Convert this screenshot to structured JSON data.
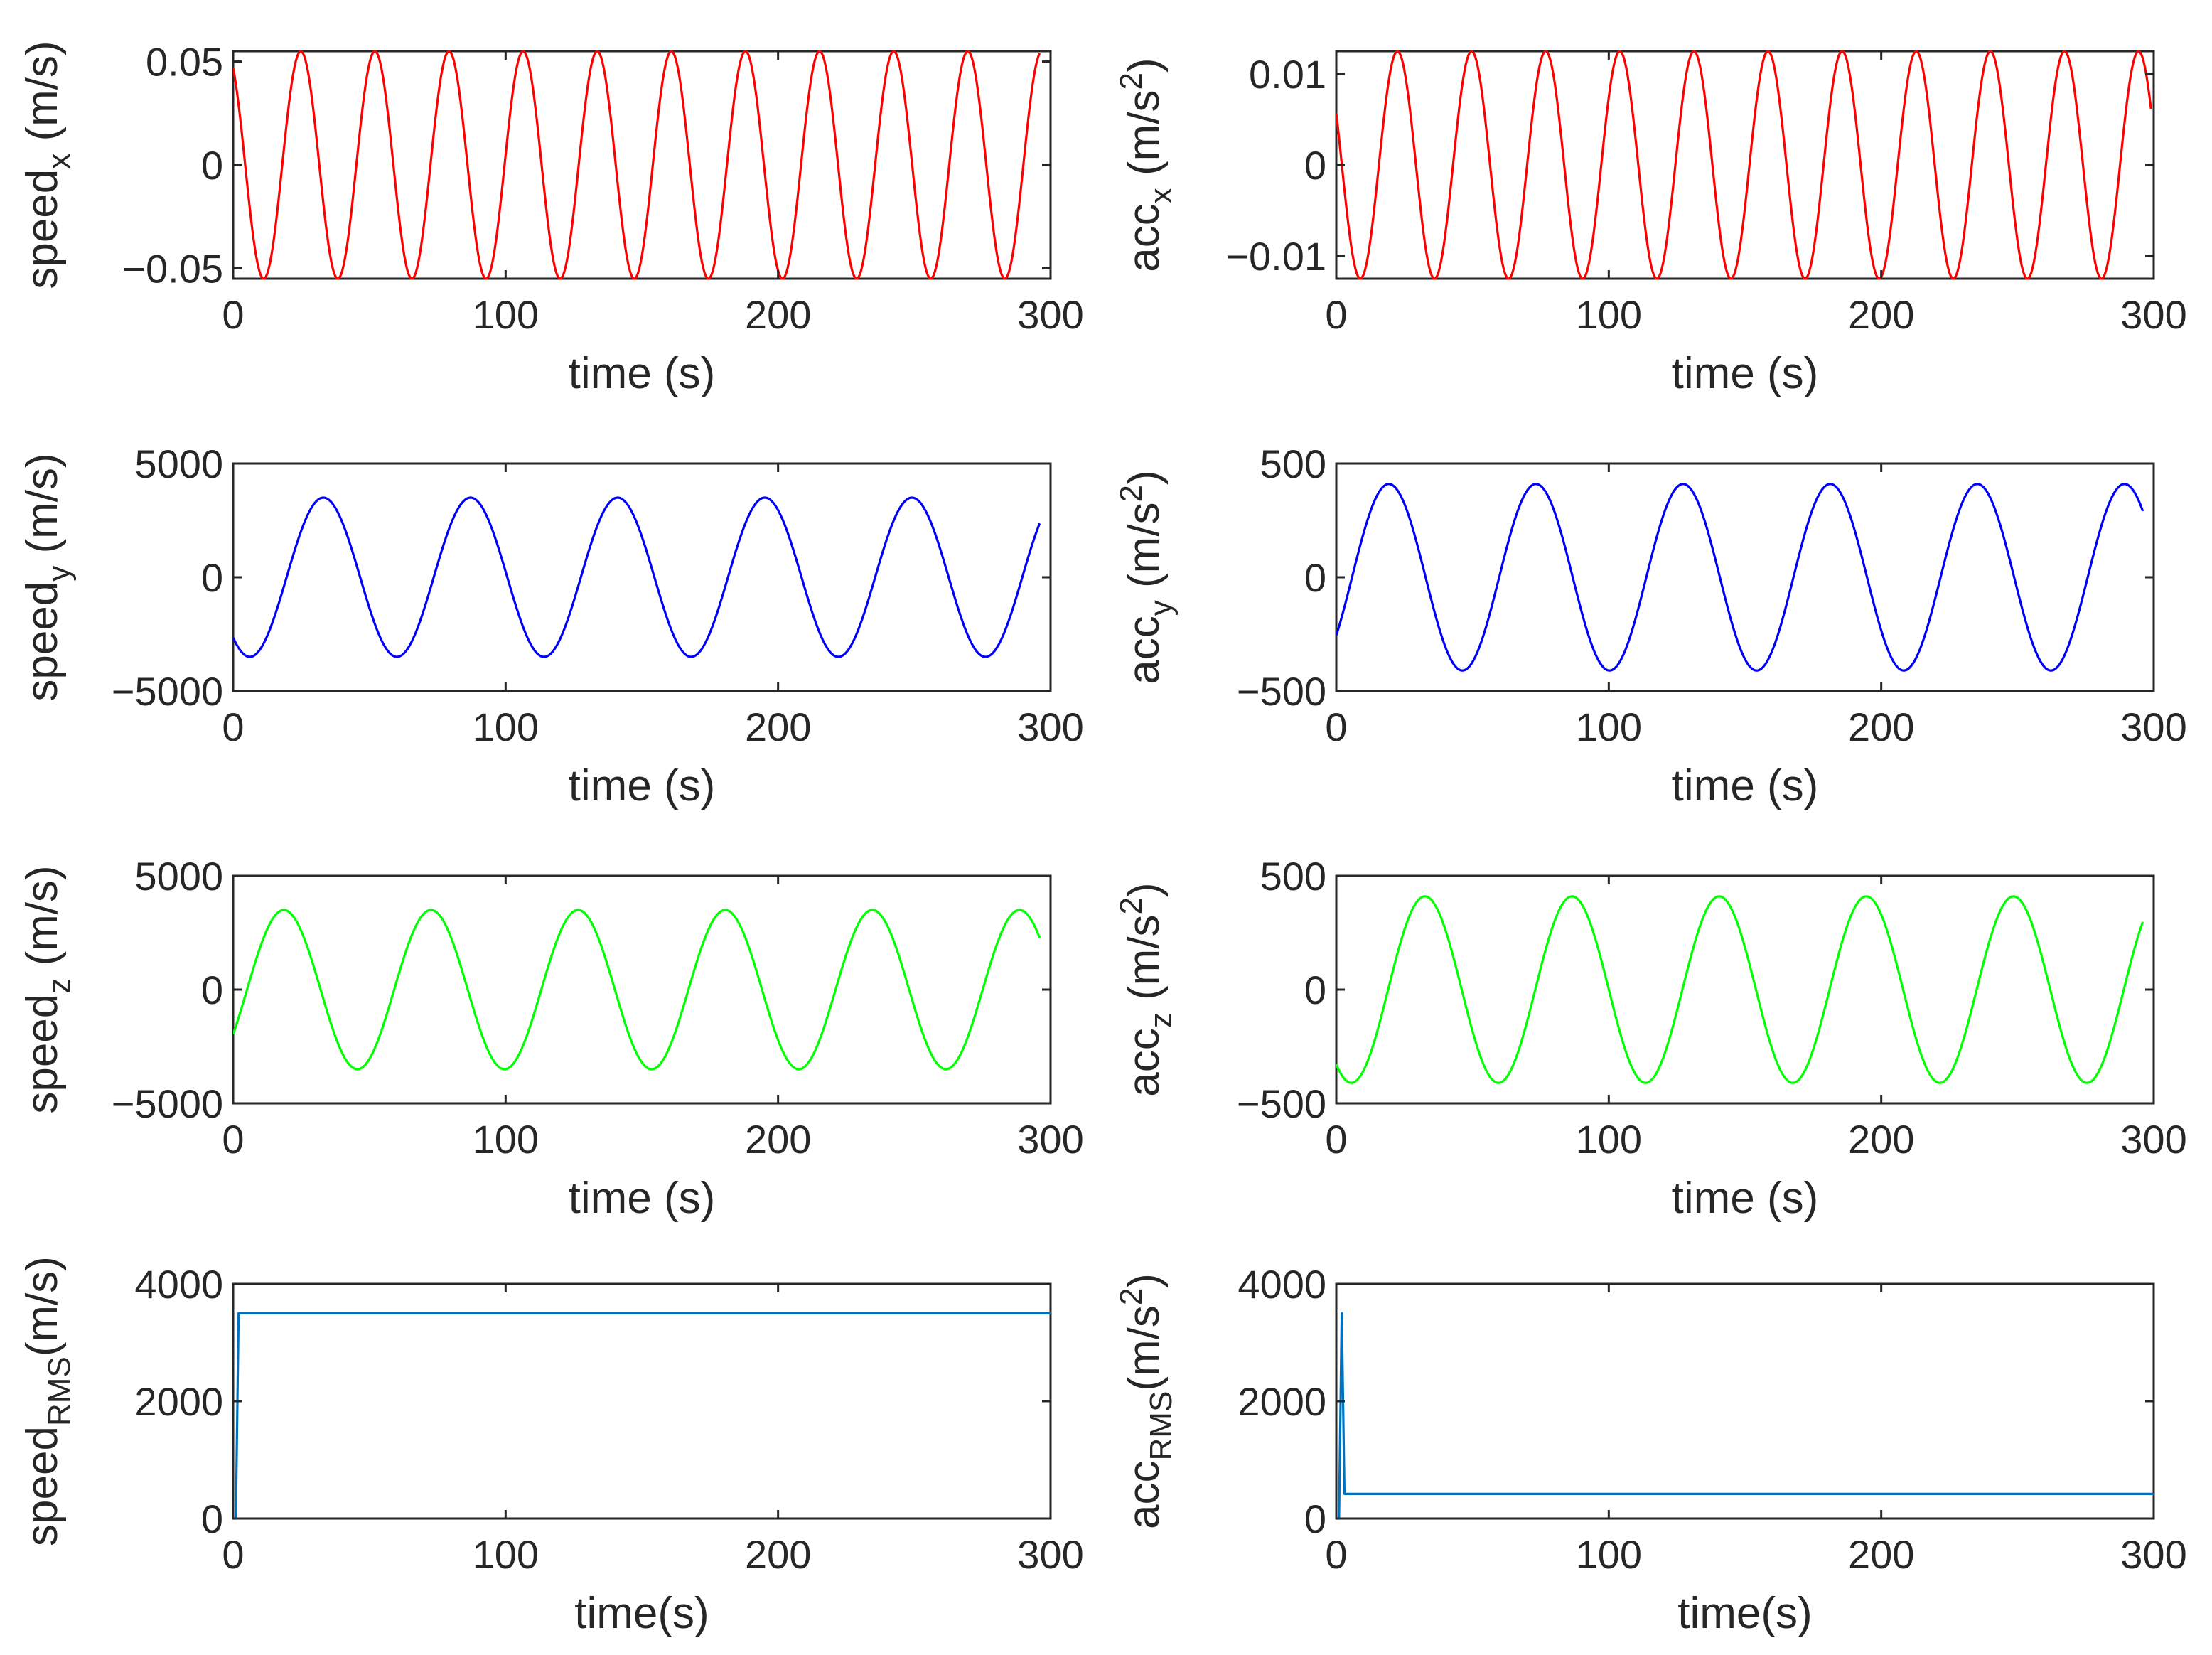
{
  "chart_data": [
    {
      "id": "speed-x",
      "type": "line",
      "xlabel": "time (s)",
      "ylabel": {
        "base": "speed",
        "sub": "x",
        "sup": "",
        "unit": " (m/s)"
      },
      "xlim": [
        0,
        300
      ],
      "ylim": [
        -0.055,
        0.055
      ],
      "xticks": [
        0,
        100,
        200,
        300
      ],
      "xtick_labels": [
        "0",
        "100",
        "200",
        "300"
      ],
      "yticks": [
        -0.05,
        0,
        0.05
      ],
      "ytick_labels": [
        "-0.05",
        "0",
        "0.05"
      ],
      "series": [
        {
          "name": "speed_x",
          "color": "#ff0000",
          "shape": "cosine",
          "amplitude": 0.055,
          "period": 27.2,
          "phase": 0.55,
          "x_end": 296
        }
      ]
    },
    {
      "id": "acc-x",
      "type": "line",
      "xlabel": "time (s)",
      "ylabel": {
        "base": "acc",
        "sub": "x",
        "sup": "2",
        "unit_pre": " (m/s",
        "unit_post": ")"
      },
      "xlim": [
        0,
        300
      ],
      "ylim": [
        -0.0125,
        0.0125
      ],
      "xticks": [
        0,
        100,
        200,
        300
      ],
      "xtick_labels": [
        "0",
        "100",
        "200",
        "300"
      ],
      "yticks": [
        -0.01,
        0,
        0.01
      ],
      "ytick_labels": [
        "-0.01",
        "0",
        "0.01"
      ],
      "series": [
        {
          "name": "acc_x",
          "color": "#ff0000",
          "shape": "cosine",
          "amplitude": 0.0125,
          "period": 27.2,
          "phase": 1.1,
          "x_end": 299
        }
      ]
    },
    {
      "id": "speed-y",
      "type": "line",
      "xlabel": "time (s)",
      "ylabel": {
        "base": "speed",
        "sub": "y",
        "sup": "",
        "unit": " (m/s)"
      },
      "xlim": [
        0,
        300
      ],
      "ylim": [
        -5000,
        5000
      ],
      "xticks": [
        0,
        100,
        200,
        300
      ],
      "xtick_labels": [
        "0",
        "100",
        "200",
        "300"
      ],
      "yticks": [
        -5000,
        0,
        5000
      ],
      "ytick_labels": [
        "-5000",
        "0",
        "5000"
      ],
      "series": [
        {
          "name": "speed_y",
          "color": "#0000ff",
          "shape": "cosine",
          "amplitude": 3500,
          "period": 54,
          "phase": 2.43,
          "x_end": 296
        }
      ]
    },
    {
      "id": "acc-y",
      "type": "line",
      "xlabel": "time (s)",
      "ylabel": {
        "base": "acc",
        "sub": "y",
        "sup": "2",
        "unit_pre": " (m/s",
        "unit_post": ")"
      },
      "xlim": [
        0,
        300
      ],
      "ylim": [
        -500,
        500
      ],
      "xticks": [
        0,
        100,
        200,
        300
      ],
      "xtick_labels": [
        "0",
        "100",
        "200",
        "300"
      ],
      "yticks": [
        -500,
        0,
        500
      ],
      "ytick_labels": [
        "-500",
        "0",
        "500"
      ],
      "series": [
        {
          "name": "acc_y",
          "color": "#0000ff",
          "shape": "cosine",
          "amplitude": 410,
          "period": 54,
          "phase": 4.04,
          "x_end": 296
        }
      ]
    },
    {
      "id": "speed-z",
      "type": "line",
      "xlabel": "time (s)",
      "ylabel": {
        "base": "speed",
        "sub": "z",
        "sup": "",
        "unit": " (m/s)"
      },
      "xlim": [
        0,
        300
      ],
      "ylim": [
        -5000,
        5000
      ],
      "xticks": [
        0,
        100,
        200,
        300
      ],
      "xtick_labels": [
        "0",
        "100",
        "200",
        "300"
      ],
      "yticks": [
        -5000,
        0,
        5000
      ],
      "ytick_labels": [
        "-5000",
        "0",
        "5000"
      ],
      "series": [
        {
          "name": "speed_z",
          "color": "#00ff00",
          "shape": "cosine",
          "amplitude": 3500,
          "period": 54,
          "phase": 4.12,
          "x_end": 296
        }
      ]
    },
    {
      "id": "acc-z",
      "type": "line",
      "xlabel": "time (s)",
      "ylabel": {
        "base": "acc",
        "sub": "z",
        "sup": "2",
        "unit_pre": " (m/s",
        "unit_post": ")"
      },
      "xlim": [
        0,
        300
      ],
      "ylim": [
        -500,
        500
      ],
      "xticks": [
        0,
        100,
        200,
        300
      ],
      "xtick_labels": [
        "0",
        "100",
        "200",
        "300"
      ],
      "yticks": [
        -500,
        0,
        500
      ],
      "ytick_labels": [
        "-500",
        "0",
        "500"
      ],
      "series": [
        {
          "name": "acc_z",
          "color": "#00ff00",
          "shape": "cosine",
          "amplitude": 410,
          "period": 54,
          "phase": 2.5,
          "x_end": 296
        }
      ]
    },
    {
      "id": "speed-rms",
      "type": "line",
      "xlabel": "time(s)",
      "ylabel": {
        "base": "speed",
        "sub": "RMS",
        "sup": "",
        "unit": "(m/s)"
      },
      "xlim": [
        0,
        300
      ],
      "ylim": [
        0,
        4000
      ],
      "xticks": [
        0,
        100,
        200,
        300
      ],
      "xtick_labels": [
        "0",
        "100",
        "200",
        "300"
      ],
      "yticks": [
        0,
        2000,
        4000
      ],
      "ytick_labels": [
        "0",
        "2000",
        "4000"
      ],
      "series": [
        {
          "name": "speed_RMS",
          "color": "#0072bd",
          "shape": "points",
          "x": [
            0,
            1,
            2,
            300
          ],
          "y": [
            0,
            0,
            3500,
            3500
          ]
        }
      ]
    },
    {
      "id": "acc-rms",
      "type": "line",
      "xlabel": "time(s)",
      "ylabel": {
        "base": "acc",
        "sub": "RMS",
        "sup": "2",
        "unit_pre": "(m/s",
        "unit_post": ")"
      },
      "xlim": [
        0,
        300
      ],
      "ylim": [
        0,
        4000
      ],
      "xticks": [
        0,
        100,
        200,
        300
      ],
      "xtick_labels": [
        "0",
        "100",
        "200",
        "300"
      ],
      "yticks": [
        0,
        2000,
        4000
      ],
      "ytick_labels": [
        "0",
        "2000",
        "4000"
      ],
      "series": [
        {
          "name": "acc_RMS",
          "color": "#0072bd",
          "shape": "points",
          "x": [
            0,
            1,
            2,
            3,
            300
          ],
          "y": [
            0,
            0,
            3500,
            420,
            420
          ]
        }
      ]
    }
  ]
}
